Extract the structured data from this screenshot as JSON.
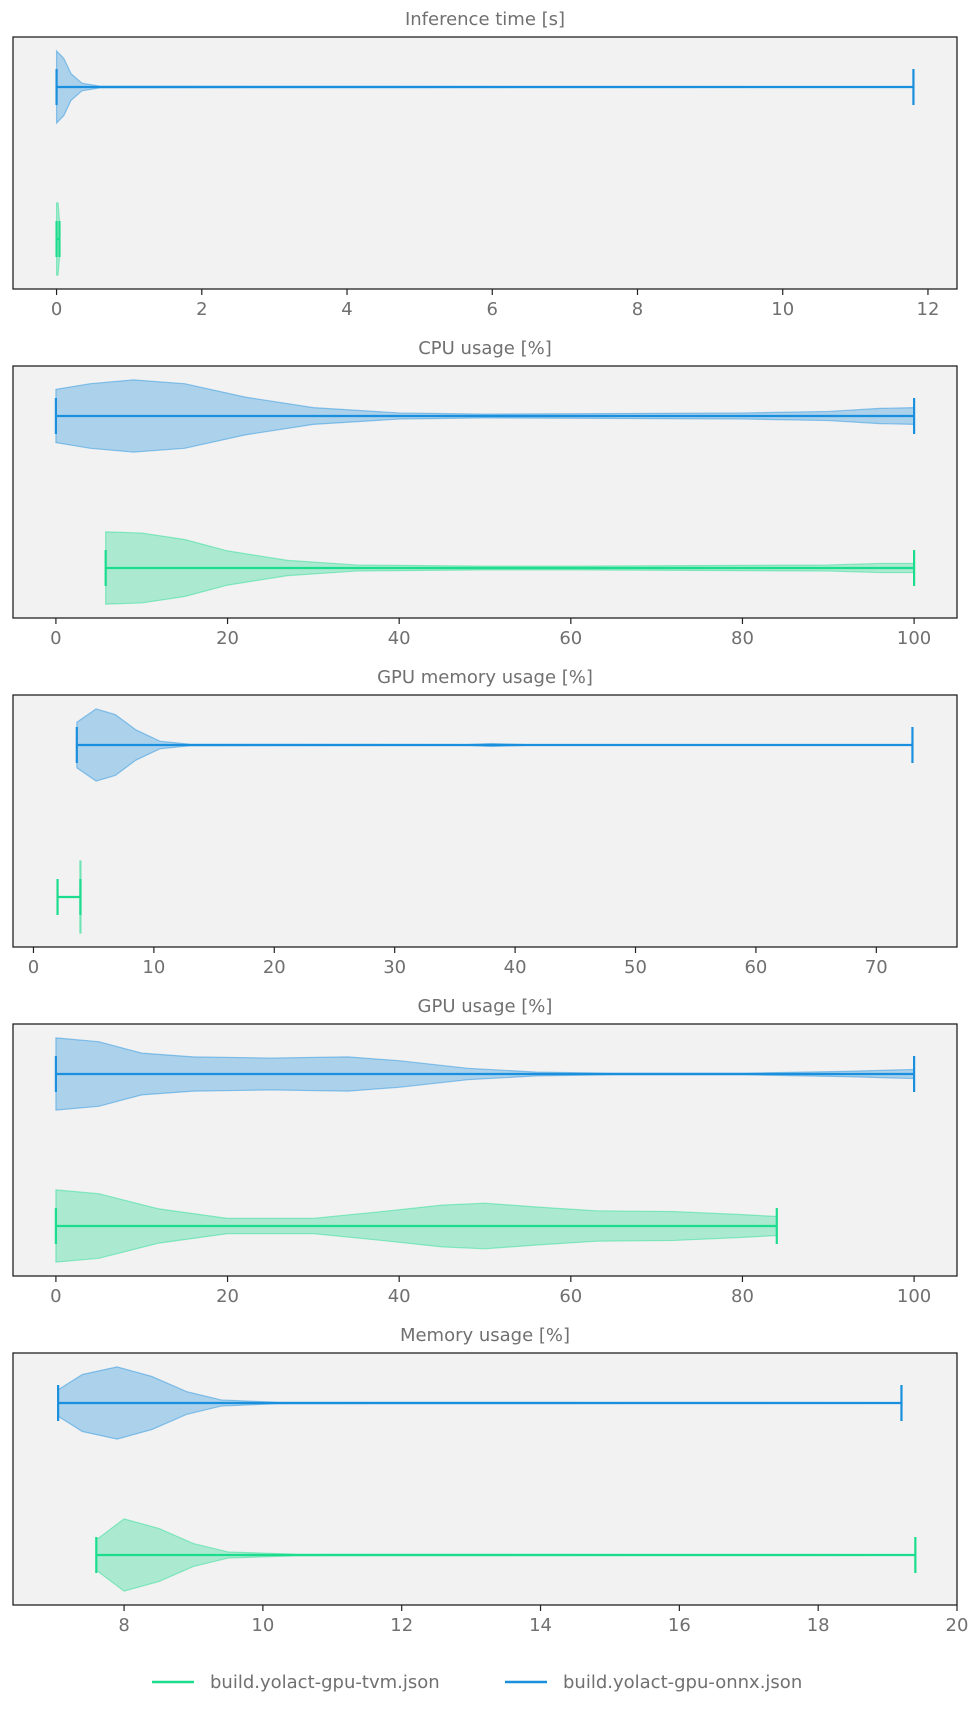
{
  "colors": {
    "tvm": "#1cdc8e",
    "onnx": "#1a8fdd",
    "panel_bg": "#f2f2f2",
    "text": "#707070"
  },
  "legend": {
    "placement": "bottom-center",
    "entries": [
      {
        "key": "tvm",
        "label": "build.yolact-gpu-tvm.json"
      },
      {
        "key": "onnx",
        "label": "build.yolact-gpu-onnx.json"
      }
    ]
  },
  "chart_data": [
    {
      "type": "violin",
      "title": "Inference time [s]",
      "xlim": [
        -0.6,
        12.4
      ],
      "xticks": [
        0,
        2,
        4,
        6,
        8,
        10,
        12
      ],
      "series": [
        {
          "key": "onnx",
          "name": "build.yolact-gpu-onnx.json",
          "min": 0.0,
          "max": 11.8,
          "density": [
            [
              0.0,
              0.95
            ],
            [
              0.1,
              0.75
            ],
            [
              0.2,
              0.35
            ],
            [
              0.35,
              0.1
            ],
            [
              0.6,
              0.02
            ],
            [
              11.8,
              0.01
            ]
          ]
        },
        {
          "key": "tvm",
          "name": "build.yolact-gpu-tvm.json",
          "min": 0.0,
          "max": 0.04,
          "density": [
            [
              0.0,
              0.95
            ],
            [
              0.02,
              0.95
            ],
            [
              0.04,
              0.5
            ]
          ]
        }
      ]
    },
    {
      "type": "violin",
      "title": "CPU usage [%]",
      "xlim": [
        -5,
        105
      ],
      "xticks": [
        0,
        20,
        40,
        60,
        80,
        100
      ],
      "series": [
        {
          "key": "onnx",
          "name": "build.yolact-gpu-onnx.json",
          "min": 0,
          "max": 100,
          "density": [
            [
              0,
              0.7
            ],
            [
              4,
              0.85
            ],
            [
              9,
              0.95
            ],
            [
              15,
              0.85
            ],
            [
              22,
              0.5
            ],
            [
              30,
              0.22
            ],
            [
              40,
              0.08
            ],
            [
              50,
              0.05
            ],
            [
              60,
              0.06
            ],
            [
              70,
              0.07
            ],
            [
              80,
              0.08
            ],
            [
              90,
              0.12
            ],
            [
              96,
              0.2
            ],
            [
              100,
              0.22
            ]
          ]
        },
        {
          "key": "tvm",
          "name": "build.yolact-gpu-tvm.json",
          "min": 5.8,
          "max": 100,
          "density": [
            [
              5.8,
              0.95
            ],
            [
              10,
              0.92
            ],
            [
              15,
              0.75
            ],
            [
              20,
              0.45
            ],
            [
              27,
              0.2
            ],
            [
              35,
              0.08
            ],
            [
              50,
              0.05
            ],
            [
              60,
              0.05
            ],
            [
              70,
              0.06
            ],
            [
              80,
              0.07
            ],
            [
              90,
              0.08
            ],
            [
              96,
              0.12
            ],
            [
              100,
              0.12
            ]
          ]
        }
      ]
    },
    {
      "type": "violin",
      "title": "GPU memory usage [%]",
      "xlim": [
        -1.7,
        76.7
      ],
      "xticks": [
        0,
        10,
        20,
        30,
        40,
        50,
        60,
        70
      ],
      "series": [
        {
          "key": "onnx",
          "name": "build.yolact-gpu-onnx.json",
          "min": 3.6,
          "max": 73.0,
          "density": [
            [
              3.6,
              0.6
            ],
            [
              5.2,
              0.95
            ],
            [
              6.8,
              0.8
            ],
            [
              8.5,
              0.4
            ],
            [
              10.5,
              0.1
            ],
            [
              13,
              0.02
            ],
            [
              36,
              0.01
            ],
            [
              38,
              0.04
            ],
            [
              41,
              0.01
            ],
            [
              73,
              0.01
            ]
          ]
        },
        {
          "key": "tvm",
          "name": "build.yolact-gpu-tvm.json",
          "min": 2.0,
          "max": 3.9,
          "density": [
            [
              3.85,
              0.95
            ],
            [
              3.95,
              0.95
            ]
          ]
        }
      ]
    },
    {
      "type": "violin",
      "title": "GPU usage [%]",
      "xlim": [
        -5,
        105
      ],
      "xticks": [
        0,
        20,
        40,
        60,
        80,
        100
      ],
      "series": [
        {
          "key": "onnx",
          "name": "build.yolact-gpu-onnx.json",
          "min": 0,
          "max": 100,
          "density": [
            [
              0,
              0.95
            ],
            [
              5,
              0.85
            ],
            [
              10,
              0.55
            ],
            [
              16,
              0.45
            ],
            [
              25,
              0.42
            ],
            [
              34,
              0.45
            ],
            [
              40,
              0.35
            ],
            [
              48,
              0.15
            ],
            [
              56,
              0.05
            ],
            [
              65,
              0.02
            ],
            [
              80,
              0.02
            ],
            [
              92,
              0.07
            ],
            [
              100,
              0.12
            ]
          ]
        },
        {
          "key": "tvm",
          "name": "build.yolact-gpu-tvm.json",
          "min": 0,
          "max": 84,
          "density": [
            [
              0,
              0.95
            ],
            [
              5,
              0.85
            ],
            [
              12,
              0.45
            ],
            [
              20,
              0.2
            ],
            [
              30,
              0.2
            ],
            [
              38,
              0.38
            ],
            [
              45,
              0.55
            ],
            [
              50,
              0.6
            ],
            [
              56,
              0.5
            ],
            [
              63,
              0.4
            ],
            [
              72,
              0.38
            ],
            [
              80,
              0.3
            ],
            [
              84,
              0.25
            ]
          ]
        }
      ]
    },
    {
      "type": "violin",
      "title": "Memory usage [%]",
      "xlim": [
        6.4,
        20.0
      ],
      "xticks": [
        8,
        10,
        12,
        14,
        16,
        18,
        20
      ],
      "series": [
        {
          "key": "onnx",
          "name": "build.yolact-gpu-onnx.json",
          "min": 7.05,
          "max": 19.2,
          "density": [
            [
              7.05,
              0.35
            ],
            [
              7.4,
              0.75
            ],
            [
              7.9,
              0.95
            ],
            [
              8.4,
              0.7
            ],
            [
              8.9,
              0.3
            ],
            [
              9.4,
              0.08
            ],
            [
              10.2,
              0.02
            ],
            [
              19.2,
              0.01
            ]
          ]
        },
        {
          "key": "tvm",
          "name": "build.yolact-gpu-tvm.json",
          "min": 7.6,
          "max": 19.4,
          "density": [
            [
              7.6,
              0.4
            ],
            [
              8.0,
              0.95
            ],
            [
              8.5,
              0.7
            ],
            [
              9.0,
              0.3
            ],
            [
              9.5,
              0.08
            ],
            [
              10.5,
              0.02
            ],
            [
              19.4,
              0.01
            ]
          ]
        }
      ]
    }
  ]
}
